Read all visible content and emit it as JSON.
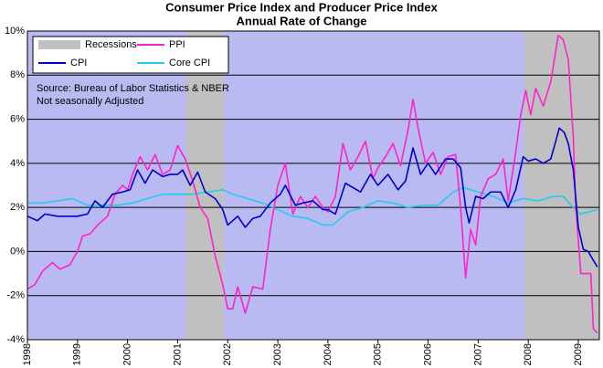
{
  "chart_data": {
    "type": "line",
    "title": "Consumer Price Index and Producer Price Index",
    "subtitle": "Annual Rate of Change",
    "annotations": [
      "Source: Bureau of Labor Statistics & NBER",
      "Not seasonally Adjusted"
    ],
    "xlim": [
      1998,
      2009.42
    ],
    "xticks": [
      1998,
      1999,
      2000,
      2001,
      2002,
      2003,
      2004,
      2005,
      2006,
      2007,
      2008,
      2009
    ],
    "ylim": [
      -4,
      10
    ],
    "yticks": [
      {
        "value": -4,
        "label": "-4%"
      },
      {
        "value": -2,
        "label": "-2%"
      },
      {
        "value": 0,
        "label": "0%"
      },
      {
        "value": 2,
        "label": "2%"
      },
      {
        "value": 4,
        "label": "4%"
      },
      {
        "value": 6,
        "label": "6%"
      },
      {
        "value": 8,
        "label": "8%"
      },
      {
        "value": 10,
        "label": "10%"
      }
    ],
    "grid": true,
    "legend": "top-left",
    "background": "#babaf2",
    "shading": {
      "name": "Recessions",
      "color": "#c0c0c0",
      "spans": [
        [
          2001.17,
          2001.92
        ],
        [
          2007.92,
          2009.42
        ]
      ]
    },
    "series": [
      {
        "name": "PPI",
        "color": "#ff22cc",
        "x": [
          1998.0,
          1998.15,
          1998.3,
          1998.5,
          1998.65,
          1998.85,
          1999.0,
          1999.1,
          1999.25,
          1999.4,
          1999.6,
          1999.75,
          1999.9,
          2000.0,
          2000.1,
          2000.25,
          2000.4,
          2000.55,
          2000.7,
          2000.85,
          2001.0,
          2001.15,
          2001.3,
          2001.45,
          2001.6,
          2001.75,
          2001.9,
          2002.0,
          2002.1,
          2002.2,
          2002.35,
          2002.5,
          2002.7,
          2002.85,
          2003.0,
          2003.15,
          2003.3,
          2003.45,
          2003.6,
          2003.75,
          2003.9,
          2004.0,
          2004.15,
          2004.3,
          2004.45,
          2004.6,
          2004.75,
          2004.9,
          2005.0,
          2005.15,
          2005.3,
          2005.45,
          2005.6,
          2005.7,
          2005.8,
          2005.95,
          2006.1,
          2006.25,
          2006.4,
          2006.55,
          2006.65,
          2006.75,
          2006.85,
          2006.95,
          2007.05,
          2007.2,
          2007.35,
          2007.5,
          2007.6,
          2007.75,
          2007.85,
          2007.95,
          2008.05,
          2008.15,
          2008.3,
          2008.45,
          2008.6,
          2008.7,
          2008.8,
          2008.9,
          2008.95,
          2009.05,
          2009.15,
          2009.25,
          2009.3,
          2009.38
        ],
        "values": [
          -1.7,
          -1.5,
          -0.9,
          -0.5,
          -0.8,
          -0.6,
          0.0,
          0.7,
          0.8,
          1.2,
          1.6,
          2.6,
          3.0,
          2.8,
          3.5,
          4.3,
          3.7,
          4.4,
          3.5,
          3.7,
          4.8,
          4.2,
          3.2,
          2.0,
          1.5,
          -0.2,
          -1.5,
          -2.6,
          -2.6,
          -1.6,
          -2.8,
          -1.6,
          -1.7,
          1.0,
          3.0,
          4.0,
          1.7,
          2.5,
          2.0,
          2.5,
          2.0,
          1.8,
          2.5,
          4.9,
          3.7,
          4.3,
          5.0,
          3.3,
          3.8,
          4.3,
          4.9,
          3.9,
          5.5,
          6.9,
          5.6,
          4.0,
          4.5,
          3.5,
          4.3,
          4.4,
          2.0,
          -1.2,
          1.0,
          0.3,
          2.5,
          3.3,
          3.5,
          4.2,
          2.3,
          4.5,
          6.2,
          7.3,
          6.2,
          7.4,
          6.6,
          7.7,
          9.8,
          9.6,
          8.7,
          5.2,
          2.0,
          -1.0,
          -1.0,
          -1.0,
          -3.5,
          -3.7
        ]
      },
      {
        "name": "CPI",
        "color": "#0000cc",
        "x": [
          1998.0,
          1998.2,
          1998.35,
          1998.6,
          1998.85,
          1999.0,
          1999.2,
          1999.35,
          1999.5,
          1999.7,
          1999.9,
          2000.05,
          2000.2,
          2000.35,
          2000.5,
          2000.7,
          2000.85,
          2001.0,
          2001.1,
          2001.25,
          2001.4,
          2001.55,
          2001.75,
          2001.9,
          2002.0,
          2002.2,
          2002.35,
          2002.5,
          2002.65,
          2002.85,
          2003.05,
          2003.15,
          2003.35,
          2003.5,
          2003.7,
          2003.9,
          2004.0,
          2004.15,
          2004.35,
          2004.5,
          2004.65,
          2004.85,
          2005.0,
          2005.2,
          2005.4,
          2005.55,
          2005.7,
          2005.85,
          2006.0,
          2006.15,
          2006.35,
          2006.5,
          2006.65,
          2006.75,
          2006.82,
          2006.95,
          2007.1,
          2007.25,
          2007.45,
          2007.6,
          2007.75,
          2007.9,
          2008.0,
          2008.15,
          2008.3,
          2008.45,
          2008.55,
          2008.62,
          2008.72,
          2008.8,
          2008.9,
          2009.0,
          2009.1,
          2009.2,
          2009.3,
          2009.38
        ],
        "values": [
          1.6,
          1.4,
          1.7,
          1.6,
          1.6,
          1.6,
          1.7,
          2.3,
          2.0,
          2.6,
          2.7,
          2.8,
          3.7,
          3.1,
          3.7,
          3.4,
          3.5,
          3.5,
          3.7,
          3.0,
          3.6,
          2.7,
          2.4,
          1.9,
          1.2,
          1.6,
          1.1,
          1.5,
          1.6,
          2.2,
          2.6,
          3.0,
          2.1,
          2.2,
          2.3,
          1.9,
          1.9,
          1.7,
          3.1,
          2.9,
          2.7,
          3.5,
          3.0,
          3.5,
          2.8,
          3.2,
          4.7,
          3.5,
          4.0,
          3.5,
          4.2,
          4.2,
          3.8,
          2.0,
          1.3,
          2.5,
          2.4,
          2.7,
          2.7,
          2.0,
          2.8,
          4.3,
          4.1,
          4.2,
          4.0,
          4.2,
          5.0,
          5.6,
          5.4,
          4.9,
          3.7,
          1.1,
          0.1,
          0.0,
          -0.4,
          -0.7
        ]
      },
      {
        "name": "Core CPI",
        "color": "#22ccee",
        "x": [
          1998.0,
          1998.3,
          1998.6,
          1998.9,
          1999.2,
          1999.5,
          1999.8,
          2000.1,
          2000.4,
          2000.7,
          2001.0,
          2001.3,
          2001.6,
          2001.9,
          2002.1,
          2002.4,
          2002.7,
          2003.0,
          2003.3,
          2003.6,
          2003.9,
          2004.1,
          2004.4,
          2004.7,
          2005.0,
          2005.3,
          2005.6,
          2005.9,
          2006.2,
          2006.5,
          2006.7,
          2007.0,
          2007.3,
          2007.6,
          2007.9,
          2008.2,
          2008.5,
          2008.7,
          2008.9,
          2009.05,
          2009.2,
          2009.38
        ],
        "values": [
          2.2,
          2.2,
          2.3,
          2.4,
          2.1,
          2.1,
          2.1,
          2.2,
          2.4,
          2.6,
          2.6,
          2.6,
          2.7,
          2.8,
          2.6,
          2.4,
          2.2,
          1.9,
          1.6,
          1.5,
          1.2,
          1.2,
          1.8,
          2.0,
          2.3,
          2.2,
          2.0,
          2.1,
          2.1,
          2.7,
          2.9,
          2.7,
          2.5,
          2.2,
          2.4,
          2.3,
          2.5,
          2.5,
          2.0,
          1.7,
          1.8,
          1.9
        ]
      }
    ]
  }
}
